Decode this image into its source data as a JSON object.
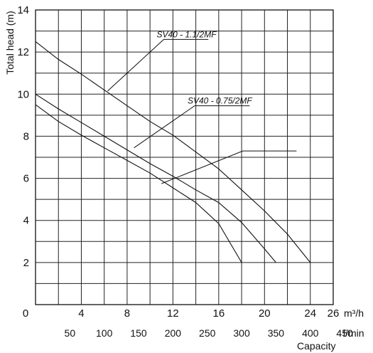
{
  "chart_data": {
    "type": "line",
    "ylabel": "Total head  (m)",
    "xlabel": "Capacity",
    "x_unit": "m3/h",
    "x_unit_display": "m³/h",
    "x2_unit": "l/min",
    "xlim": [
      0,
      26
    ],
    "ylim": [
      0,
      14
    ],
    "x_ticks": [
      0,
      4,
      8,
      12,
      16,
      20,
      24,
      26
    ],
    "x_tick_labels": [
      "0",
      "4",
      "8",
      "12",
      "16",
      "20",
      "24",
      "26"
    ],
    "x2_ticks": [
      50,
      100,
      150,
      200,
      250,
      300,
      350,
      400,
      450
    ],
    "x2_tick_labels": [
      "50",
      "100",
      "150",
      "200",
      "250",
      "300",
      "350",
      "400",
      "450"
    ],
    "y_ticks": [
      2,
      4,
      6,
      8,
      10,
      12,
      14
    ],
    "y_tick_labels": [
      "2",
      "4",
      "6",
      "8",
      "10",
      "12",
      "14"
    ],
    "grid": true,
    "series": [
      {
        "name": "SV40 - 1.1/2MF",
        "x": [
          0,
          2,
          4,
          6,
          8,
          10,
          12,
          14,
          16,
          18,
          20,
          22,
          24
        ],
        "y": [
          12.5,
          11.65,
          10.95,
          10.2,
          9.45,
          8.7,
          8.05,
          7.25,
          6.45,
          5.45,
          4.45,
          3.35,
          2.0
        ]
      },
      {
        "name": "SV40 - 0.75/2MF",
        "x": [
          0,
          2,
          4,
          6,
          8,
          10,
          12,
          14,
          16,
          18,
          20,
          21
        ],
        "y": [
          10.0,
          9.3,
          8.65,
          8.0,
          7.35,
          6.7,
          6.1,
          5.45,
          4.85,
          3.9,
          2.65,
          2.0
        ]
      },
      {
        "name": "",
        "x": [
          0,
          2,
          4,
          6,
          8,
          10,
          12,
          14,
          16,
          18
        ],
        "y": [
          9.5,
          8.7,
          8.05,
          7.45,
          6.85,
          6.25,
          5.55,
          4.85,
          3.85,
          2.0
        ]
      }
    ],
    "annotations": [
      {
        "text": "SV40 - 1.1/2MF",
        "series": 0
      },
      {
        "text": "SV40 - 0.75/2MF",
        "series": 1
      },
      {
        "text": "",
        "series": 2
      }
    ]
  }
}
